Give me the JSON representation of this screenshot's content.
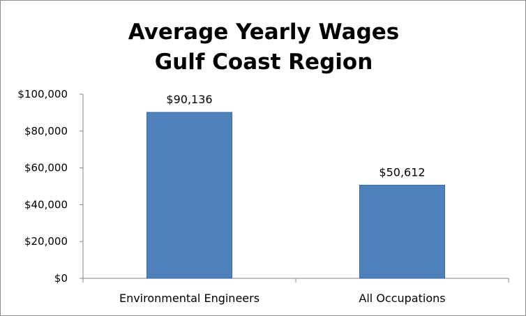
{
  "chart_data": {
    "type": "bar",
    "title": [
      "Average Yearly Wages",
      "Gulf Coast Region"
    ],
    "categories": [
      "Environmental Engineers",
      "All Occupations"
    ],
    "values": [
      90136,
      50612
    ],
    "data_labels": [
      "$90,136",
      "$50,612"
    ],
    "ylim": [
      0,
      100000
    ],
    "yticks": [
      0,
      20000,
      40000,
      60000,
      80000,
      100000
    ],
    "ytick_labels": [
      "$0",
      "$20,000",
      "$40,000",
      "$60,000",
      "$80,000",
      "$100,000"
    ],
    "xlabel": "",
    "ylabel": "",
    "grid": false,
    "legend": "none",
    "bar_color": "#4f81bd",
    "bar_edge_color": "#3a6aa3"
  }
}
